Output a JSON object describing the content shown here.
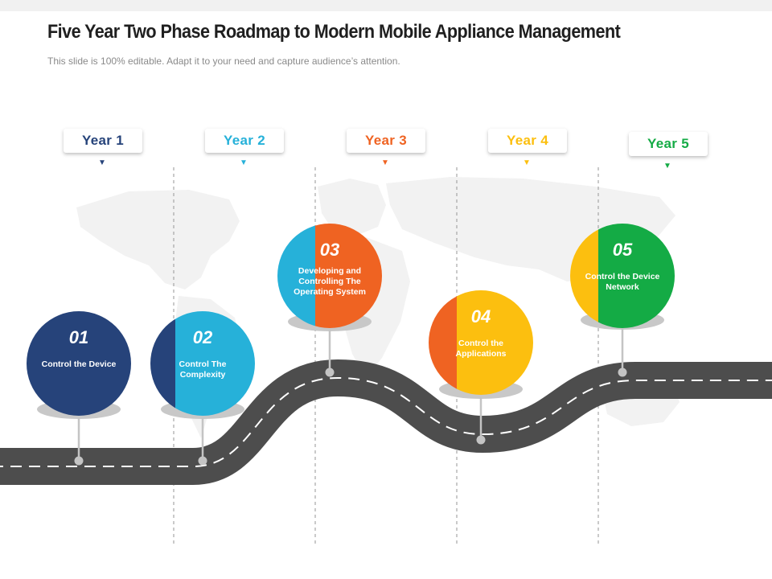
{
  "title": "Five Year Two Phase Roadmap to Modern Mobile Appliance Management",
  "subtitle": "This slide is 100% editable. Adapt it to your need and capture audience’s attention.",
  "colors": {
    "navy": "#26437a",
    "cyan": "#26b1d9",
    "orange": "#ef6322",
    "yellow": "#fcbf0f",
    "green": "#14ab45",
    "road": "#4d4d4d",
    "map": "#f2f2f2"
  },
  "years": [
    {
      "label": "Year 1",
      "color": "#26437a"
    },
    {
      "label": "Year 2",
      "color": "#26b1d9"
    },
    {
      "label": "Year 3",
      "color": "#ef6322"
    },
    {
      "label": "Year 4",
      "color": "#fcbf0f"
    },
    {
      "label": "Year 5",
      "color": "#14ab45"
    }
  ],
  "milestones": [
    {
      "number": "01",
      "text": "Control the Device",
      "left_color": "#26437a",
      "right_color": "#26437a"
    },
    {
      "number": "02",
      "text": "Control The Complexity",
      "left_color": "#26437a",
      "right_color": "#26b1d9"
    },
    {
      "number": "03",
      "text": "Developing and Controlling The Operating System",
      "left_color": "#26b1d9",
      "right_color": "#ef6322"
    },
    {
      "number": "04",
      "text": "Control the Applications",
      "left_color": "#ef6322",
      "right_color": "#fcbf0f"
    },
    {
      "number": "05",
      "text": "Control the Device Network",
      "left_color": "#fcbf0f",
      "right_color": "#14ab45"
    }
  ]
}
